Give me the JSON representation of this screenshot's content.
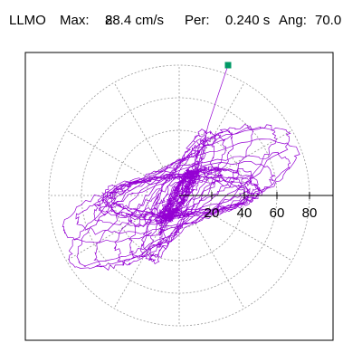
{
  "header": {
    "station": "LLMO",
    "max_label": "Max:",
    "max_value": "88.4 cm/s",
    "max_unit_exp": "2",
    "per_label": "Per:",
    "per_value": "0.240 s",
    "ang_label": "Ang:",
    "ang_value": "70.0"
  },
  "chart_data": {
    "type": "scatter",
    "subtype": "polar-orbit",
    "units": "cm/s2",
    "radial_ticks": [
      "20",
      "40",
      "60",
      "80"
    ],
    "radial_range": [
      0,
      95
    ],
    "rings": [
      20,
      40,
      60,
      80
    ],
    "spokes_deg_step": 30,
    "grid": true,
    "trace_color": "#9400D3",
    "marker_color": "#009966",
    "grid_color": "#999999",
    "peak_marker": {
      "x": 30,
      "y": 80
    },
    "orbit_seed": 7
  }
}
